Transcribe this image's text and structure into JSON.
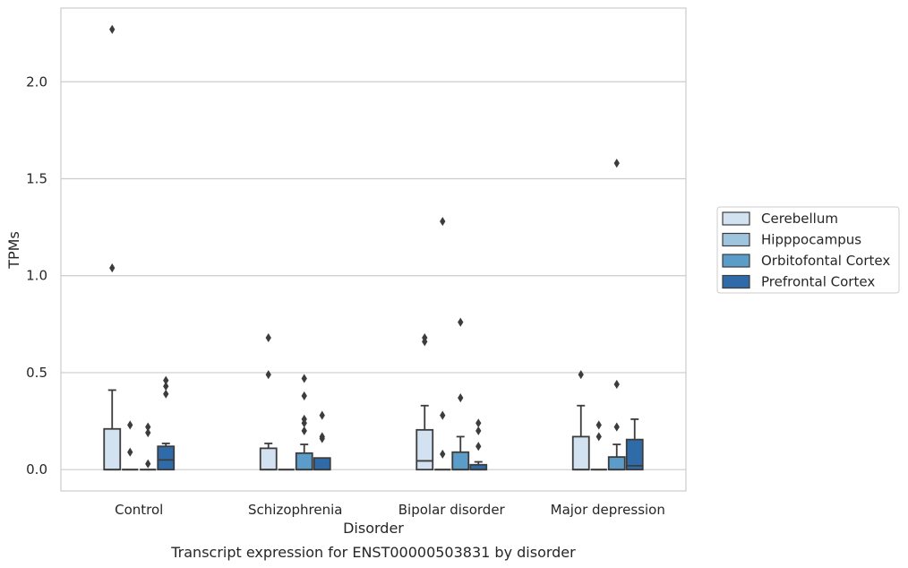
{
  "chart_data": {
    "type": "box",
    "title": "",
    "caption": "Transcript expression for ENST00000503831 by disorder",
    "xlabel": "Disorder",
    "ylabel": "TPMs",
    "ylim": [
      -0.11,
      2.38
    ],
    "yticks": [
      0.0,
      0.5,
      1.0,
      1.5,
      2.0
    ],
    "ytick_labels": [
      "0.0",
      "0.5",
      "1.0",
      "1.5",
      "2.0"
    ],
    "grid": "horizontal",
    "legend_position": "right",
    "categories": [
      "Control",
      "Schizophrenia",
      "Bipolar disorder",
      "Major depression"
    ],
    "series": [
      {
        "name": "Cerebellum",
        "color": "#d2e2f0",
        "boxes": [
          {
            "q1": 0.0,
            "median": 0.0,
            "q3": 0.21,
            "whislo": 0.0,
            "whishi": 0.41,
            "fliers": [
              2.27,
              1.04
            ]
          },
          {
            "q1": 0.0,
            "median": 0.0,
            "q3": 0.11,
            "whislo": 0.0,
            "whishi": 0.135,
            "fliers": [
              0.68,
              0.49
            ]
          },
          {
            "q1": 0.0,
            "median": 0.045,
            "q3": 0.205,
            "whislo": 0.0,
            "whishi": 0.33,
            "fliers": [
              0.68,
              0.66
            ]
          },
          {
            "q1": 0.0,
            "median": 0.0,
            "q3": 0.17,
            "whislo": 0.0,
            "whishi": 0.33,
            "fliers": [
              0.49
            ]
          }
        ]
      },
      {
        "name": "Hipppocampus",
        "color": "#9fc4de",
        "boxes": [
          {
            "q1": 0.0,
            "median": 0.0,
            "q3": 0.0,
            "whislo": 0.0,
            "whishi": 0.0,
            "fliers": [
              0.23,
              0.09
            ]
          },
          {
            "q1": 0.0,
            "median": 0.0,
            "q3": 0.0,
            "whislo": 0.0,
            "whishi": 0.0,
            "fliers": []
          },
          {
            "q1": 0.0,
            "median": 0.0,
            "q3": 0.0,
            "whislo": 0.0,
            "whishi": 0.0,
            "fliers": [
              1.28,
              0.28,
              0.08
            ]
          },
          {
            "q1": 0.0,
            "median": 0.0,
            "q3": 0.0,
            "whislo": 0.0,
            "whishi": 0.0,
            "fliers": [
              0.23,
              0.17
            ]
          }
        ]
      },
      {
        "name": "Orbitofontal Cortex",
        "color": "#5b9cc8",
        "boxes": [
          {
            "q1": 0.0,
            "median": 0.0,
            "q3": 0.0,
            "whislo": 0.0,
            "whishi": 0.0,
            "fliers": [
              0.22,
              0.19,
              0.03
            ]
          },
          {
            "q1": 0.0,
            "median": 0.0,
            "q3": 0.085,
            "whislo": 0.0,
            "whishi": 0.13,
            "fliers": [
              0.47,
              0.38,
              0.26,
              0.24,
              0.2
            ]
          },
          {
            "q1": 0.0,
            "median": 0.0,
            "q3": 0.09,
            "whislo": 0.0,
            "whishi": 0.17,
            "fliers": [
              0.76,
              0.37
            ]
          },
          {
            "q1": 0.0,
            "median": 0.0,
            "q3": 0.065,
            "whislo": 0.0,
            "whishi": 0.13,
            "fliers": [
              1.58,
              0.44,
              0.22
            ]
          }
        ]
      },
      {
        "name": "Prefrontal Cortex",
        "color": "#2f6ba8",
        "boxes": [
          {
            "q1": 0.0,
            "median": 0.05,
            "q3": 0.12,
            "whislo": 0.0,
            "whishi": 0.135,
            "fliers": [
              0.46,
              0.43,
              0.39
            ]
          },
          {
            "q1": 0.0,
            "median": 0.0,
            "q3": 0.06,
            "whislo": 0.0,
            "whishi": 0.06,
            "fliers": [
              0.28,
              0.17,
              0.16
            ]
          },
          {
            "q1": 0.0,
            "median": 0.0,
            "q3": 0.025,
            "whislo": 0.0,
            "whishi": 0.04,
            "fliers": [
              0.24,
              0.2,
              0.12
            ]
          },
          {
            "q1": 0.0,
            "median": 0.02,
            "q3": 0.155,
            "whislo": 0.0,
            "whishi": 0.26,
            "fliers": []
          }
        ]
      }
    ]
  }
}
